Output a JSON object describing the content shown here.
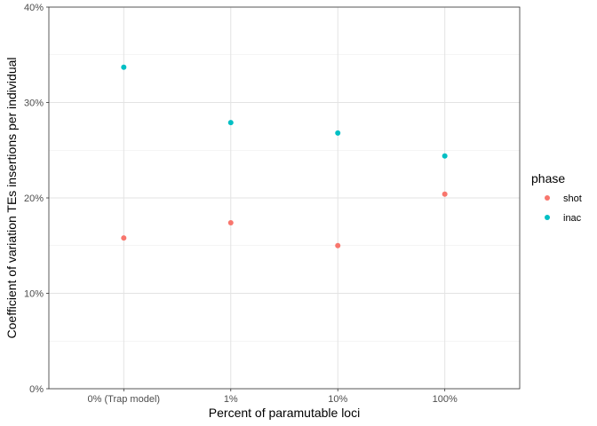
{
  "chart_data": {
    "type": "scatter",
    "title": "",
    "xlabel": "Percent of paramutable loci",
    "ylabel": "Coefficient of variation TEs insertions per individual",
    "categories": [
      "0% (Trap model)",
      "1%",
      "10%",
      "100%"
    ],
    "ylim": [
      0,
      40
    ],
    "yticks": [
      0,
      10,
      20,
      30,
      40
    ],
    "ytick_labels": [
      "0%",
      "10%",
      "20%",
      "30%",
      "40%"
    ],
    "grid": true,
    "legend": {
      "title": "phase",
      "position": "right"
    },
    "series": [
      {
        "name": "shot",
        "color": "#F8766D",
        "values": [
          15.8,
          17.4,
          15.0,
          20.4
        ]
      },
      {
        "name": "inac",
        "color": "#00BFC4",
        "values": [
          33.7,
          27.9,
          26.8,
          24.4
        ]
      }
    ]
  }
}
